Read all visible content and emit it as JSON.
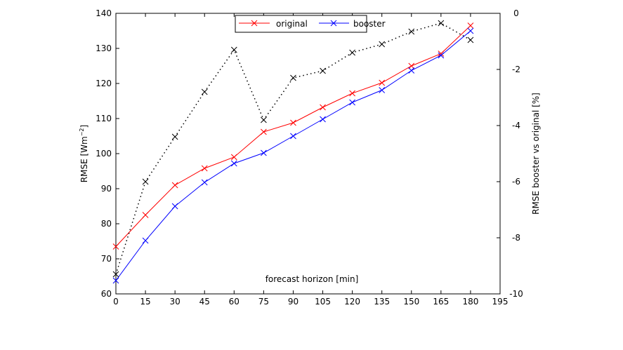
{
  "chart_data": {
    "type": "line",
    "xlabel": "forecast horizon [min]",
    "ylabel": "RMSE [Wm",
    "ylabel_sup": "−2",
    "ylabel_end": "]",
    "y2label": "RMSE booster vs original [%]",
    "x": [
      0,
      15,
      30,
      45,
      60,
      75,
      90,
      105,
      120,
      135,
      150,
      165,
      180
    ],
    "xlim": [
      0,
      195
    ],
    "xticks": [
      "0",
      "15",
      "30",
      "45",
      "60",
      "75",
      "90",
      "105",
      "120",
      "135",
      "150",
      "165",
      "180",
      "195"
    ],
    "ylim": [
      60,
      140
    ],
    "yticks": [
      "60",
      "70",
      "80",
      "90",
      "100",
      "110",
      "120",
      "130",
      "140"
    ],
    "y2lim": [
      -10,
      0
    ],
    "y2ticks": [
      "-10",
      "-8",
      "-6",
      "-4",
      "-2",
      "0"
    ],
    "legend_position": "top-center",
    "series": [
      {
        "name": "original",
        "color": "#ff0000",
        "axis": "left",
        "style": "solid",
        "values": [
          73.5,
          82.5,
          91.0,
          95.8,
          99.0,
          106.2,
          108.8,
          113.2,
          117.2,
          120.2,
          125.0,
          128.5,
          136.5
        ]
      },
      {
        "name": "booster",
        "color": "#0000ff",
        "axis": "left",
        "style": "solid",
        "values": [
          63.8,
          75.2,
          85.0,
          91.8,
          97.2,
          100.2,
          105.0,
          109.8,
          114.6,
          118.1,
          123.7,
          128.0,
          135.0
        ]
      },
      {
        "name": "",
        "color": "#000000",
        "axis": "right",
        "style": "dotted",
        "values": [
          -9.3,
          -6.0,
          -4.4,
          -2.8,
          -1.3,
          -3.8,
          -2.3,
          -2.05,
          -1.4,
          -1.1,
          -0.65,
          -0.35,
          -0.95
        ]
      }
    ]
  }
}
